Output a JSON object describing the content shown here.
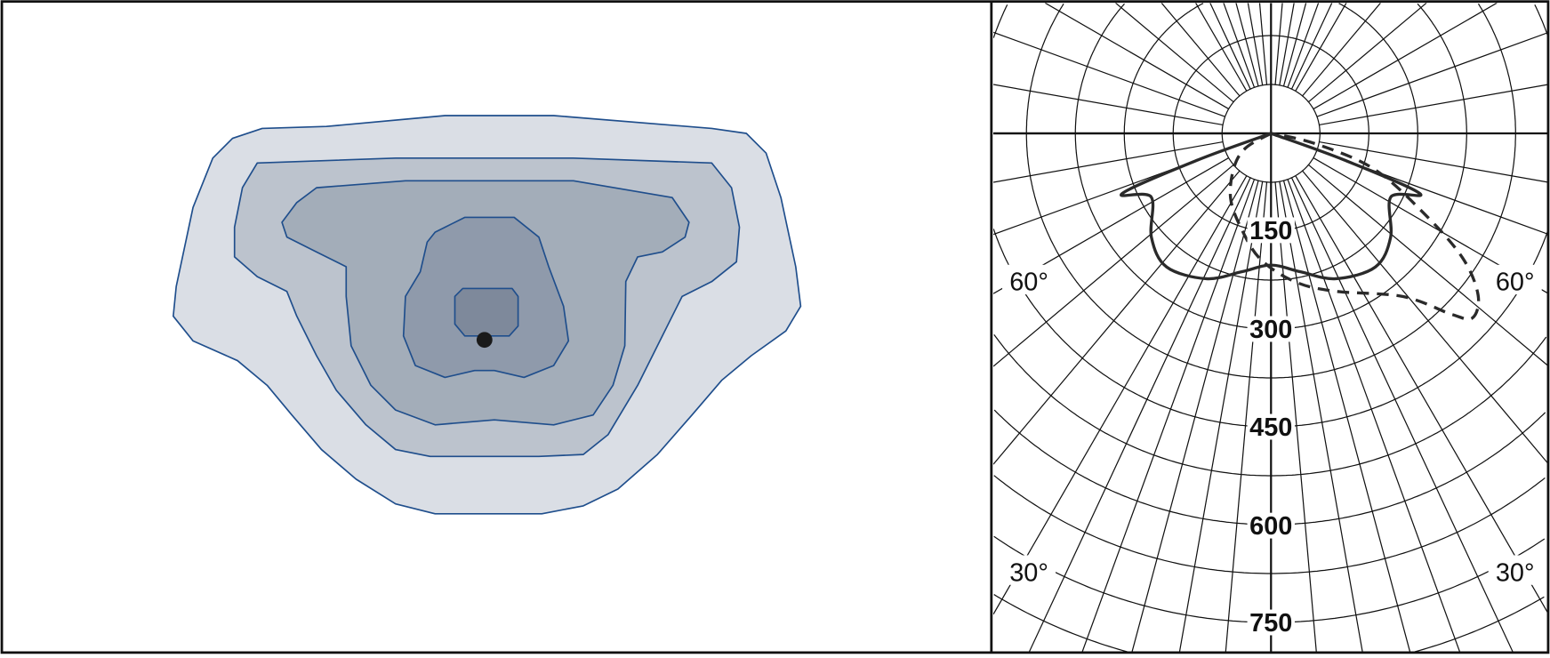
{
  "chart_data": [
    {
      "type": "contour",
      "panel": "isolux",
      "levels": 5,
      "colors": {
        "level1": "#dadee5",
        "level2": "#bcc3cd",
        "level3": "#a3adb9",
        "level4": "#8f9aab",
        "level5": "#7e899b",
        "outline": "#1f4e8c",
        "luminaire_marker": "#1a1a1a"
      }
    },
    {
      "type": "polar",
      "panel": "luminous-intensity",
      "radial_unit": "cd",
      "radial_ticks": [
        150,
        300,
        450,
        600,
        750
      ],
      "radial_circle_step": 75,
      "angle_labels": [
        "60°",
        "60°",
        "30°",
        "30°"
      ],
      "angle_zero": "nadir",
      "grid": true,
      "series": [
        {
          "style": "solid",
          "points": [
            [
              -90,
              0
            ],
            [
              -70,
              120
            ],
            [
              -68,
              246
            ],
            [
              -62,
              208
            ],
            [
              -49,
              243
            ],
            [
              -38,
              260
            ],
            [
              -24,
              244
            ],
            [
              -12,
              217
            ],
            [
              0,
              202
            ],
            [
              12,
              217
            ],
            [
              24,
              244
            ],
            [
              38,
              260
            ],
            [
              49,
              243
            ],
            [
              62,
              208
            ],
            [
              68,
              246
            ],
            [
              70,
              120
            ],
            [
              90,
              0
            ]
          ]
        },
        {
          "style": "dashed",
          "points": [
            [
              -90,
              0
            ],
            [
              -60,
              45
            ],
            [
              -47,
              78
            ],
            [
              -32,
              117
            ],
            [
              -18,
              151
            ],
            [
              -5,
              193
            ],
            [
              9,
              230
            ],
            [
              22,
              261
            ],
            [
              39,
              322
            ],
            [
              45,
              393
            ],
            [
              47.5,
              419
            ],
            [
              52,
              403
            ],
            [
              57,
              350
            ],
            [
              62.5,
              263
            ],
            [
              71,
              166
            ],
            [
              77,
              68
            ],
            [
              90,
              0
            ]
          ]
        }
      ],
      "colors": {
        "grid": "#111111",
        "curve": "#2a2a2a"
      }
    }
  ]
}
